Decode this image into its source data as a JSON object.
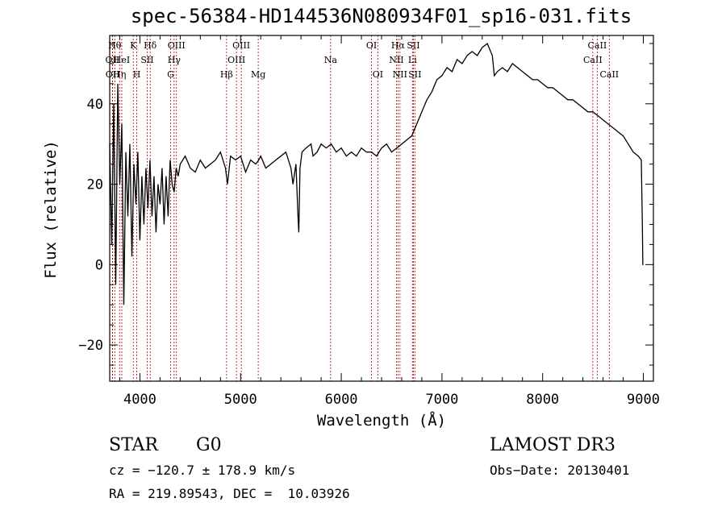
{
  "chart_data": {
    "type": "line",
    "title": "spec-56384-HD144536N080934F01_sp16-031.fits",
    "xlabel": "Wavelength (Å)",
    "ylabel": "Flux (relative)",
    "xlim": [
      3700,
      9100
    ],
    "ylim": [
      -29,
      57
    ],
    "xticks": [
      4000,
      5000,
      6000,
      7000,
      8000,
      9000
    ],
    "yticks": [
      -20,
      0,
      20,
      40
    ],
    "grid": false,
    "line_color": "#000000",
    "marker_color": "#b00000",
    "series": [
      {
        "x": [
          3700,
          3720,
          3740,
          3760,
          3780,
          3800,
          3820,
          3840,
          3860,
          3880,
          3900,
          3920,
          3940,
          3960,
          3980,
          4000,
          4020,
          4040,
          4060,
          4080,
          4100,
          4120,
          4140,
          4160,
          4180,
          4200,
          4220,
          4240,
          4260,
          4280,
          4300,
          4320,
          4340,
          4360,
          4380,
          4400,
          4450,
          4500,
          4550,
          4600,
          4650,
          4700,
          4750,
          4800,
          4850,
          4870,
          4900,
          4950,
          5000,
          5050,
          5100,
          5150,
          5180,
          5200,
          5250,
          5300,
          5350,
          5400,
          5450,
          5500,
          5520,
          5550,
          5570,
          5578,
          5590,
          5610,
          5650,
          5700,
          5720,
          5760,
          5800,
          5850,
          5900,
          5950,
          6000,
          6050,
          6100,
          6150,
          6200,
          6250,
          6300,
          6350,
          6400,
          6450,
          6500,
          6550,
          6600,
          6650,
          6700,
          6750,
          6800,
          6850,
          6900,
          6950,
          7000,
          7050,
          7100,
          7150,
          7200,
          7250,
          7300,
          7350,
          7400,
          7450,
          7500,
          7520,
          7550,
          7600,
          7650,
          7700,
          7750,
          7800,
          7850,
          7900,
          7950,
          8000,
          8050,
          8100,
          8150,
          8200,
          8250,
          8300,
          8350,
          8400,
          8450,
          8500,
          8550,
          8600,
          8650,
          8700,
          8750,
          8800,
          8850,
          8900,
          8950,
          8980,
          8990,
          8995,
          9000
        ],
        "y": [
          30,
          5,
          40,
          -5,
          45,
          20,
          35,
          -10,
          28,
          12,
          30,
          2,
          25,
          15,
          28,
          6,
          22,
          10,
          24,
          14,
          26,
          12,
          22,
          8,
          20,
          15,
          24,
          10,
          22,
          12,
          26,
          20,
          18,
          24,
          22,
          25,
          27,
          24,
          23,
          26,
          24,
          25,
          26,
          28,
          24,
          20,
          27,
          26,
          27,
          23,
          26,
          25,
          26,
          27,
          24,
          25,
          26,
          27,
          28,
          24,
          20,
          25,
          12,
          8,
          24,
          28,
          29,
          30,
          27,
          28,
          30,
          29,
          30,
          28,
          29,
          27,
          28,
          27,
          29,
          28,
          28,
          27,
          29,
          30,
          28,
          29,
          30,
          31,
          32,
          35,
          38,
          41,
          43,
          46,
          47,
          49,
          48,
          51,
          50,
          52,
          53,
          52,
          54,
          55,
          52,
          47,
          48,
          49,
          48,
          50,
          49,
          48,
          47,
          46,
          46,
          45,
          44,
          44,
          43,
          42,
          41,
          41,
          40,
          39,
          38,
          38,
          37,
          36,
          35,
          34,
          33,
          32,
          30,
          28,
          27,
          26,
          10,
          0,
          0
        ]
      }
    ],
    "lines": [
      {
        "label": "OII",
        "x": 3727,
        "row": 1
      },
      {
        "label": "OII",
        "x": 3729,
        "row": 2
      },
      {
        "label": "Hθ",
        "x": 3750,
        "row": 0
      },
      {
        "label": "Hη",
        "x": 3798,
        "row": 2
      },
      {
        "label": "HeI",
        "x": 3820,
        "row": 1
      },
      {
        "label": "K",
        "x": 3934,
        "row": 0
      },
      {
        "label": "H",
        "x": 3969,
        "row": 2
      },
      {
        "label": "SII",
        "x": 4072,
        "row": 1
      },
      {
        "label": "Hδ",
        "x": 4102,
        "row": 0
      },
      {
        "label": "G",
        "x": 4305,
        "row": 2
      },
      {
        "label": "Hγ",
        "x": 4340,
        "row": 1
      },
      {
        "label": "OIII",
        "x": 4363,
        "row": 0
      },
      {
        "label": "Hβ",
        "x": 4861,
        "row": 2
      },
      {
        "label": "OIII",
        "x": 4959,
        "row": 1
      },
      {
        "label": "OIII",
        "x": 5007,
        "row": 0
      },
      {
        "label": "Mg",
        "x": 5175,
        "row": 2
      },
      {
        "label": "Na",
        "x": 5894,
        "row": 1
      },
      {
        "label": "OI",
        "x": 6300,
        "row": 0
      },
      {
        "label": "OI",
        "x": 6363,
        "row": 2
      },
      {
        "label": "NII",
        "x": 6548,
        "row": 1
      },
      {
        "label": "Hα",
        "x": 6563,
        "row": 0
      },
      {
        "label": "NII",
        "x": 6583,
        "row": 2
      },
      {
        "label": "Li",
        "x": 6707,
        "row": 1
      },
      {
        "label": "SII",
        "x": 6716,
        "row": 0
      },
      {
        "label": "SII",
        "x": 6731,
        "row": 2
      },
      {
        "label": "CaII",
        "x": 8498,
        "row": 1
      },
      {
        "label": "CaII",
        "x": 8542,
        "row": 0
      },
      {
        "label": "CaII",
        "x": 8662,
        "row": 2
      }
    ]
  },
  "info": {
    "object_class": "STAR",
    "subclass": "G0",
    "survey": "LAMOST DR3",
    "redshift": "cz = −120.7 ± 178.9 km/s",
    "obs_date": "Obs−Date: 20130401",
    "coords": "RA = 219.89543, DEC =  10.03926"
  }
}
